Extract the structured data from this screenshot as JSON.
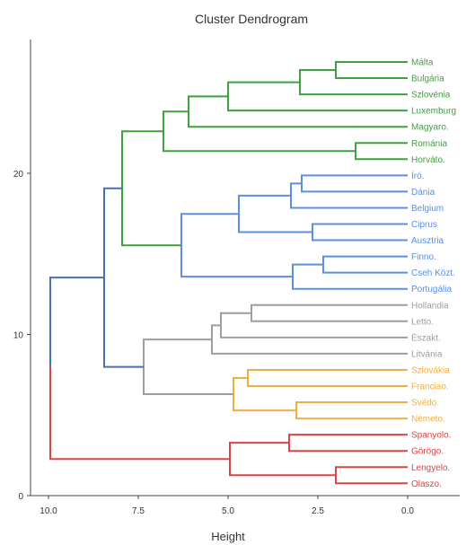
{
  "chart_data": {
    "type": "dendrogram",
    "title": "Cluster Dendrogram",
    "xlabel": "Height",
    "ylabel": "",
    "orientation": "horizontal",
    "x_reversed": true,
    "xlim": [
      10.4,
      -1.5
    ],
    "x_ticks": [
      10.0,
      7.5,
      5.0,
      2.5,
      0.0
    ],
    "x_tick_labels": [
      "10.0",
      "7.5",
      "5.0",
      "2.5",
      "0.0"
    ],
    "ylim": [
      0,
      28
    ],
    "y_ticks": [
      0,
      10,
      20
    ],
    "y_tick_labels": [
      "0",
      "10",
      "20"
    ],
    "grid": false,
    "legend": "none",
    "leaves": [
      {
        "label": "Málta",
        "color": "#3fa13f"
      },
      {
        "label": "Bulgária",
        "color": "#3fa13f"
      },
      {
        "label": "Szlovénia",
        "color": "#3fa13f"
      },
      {
        "label": "Luxemburg",
        "color": "#3fa13f"
      },
      {
        "label": "Magyaro.",
        "color": "#3fa13f"
      },
      {
        "label": "Románia",
        "color": "#3fa13f"
      },
      {
        "label": "Horváto.",
        "color": "#3fa13f"
      },
      {
        "label": "Író.",
        "color": "#5b8fe3"
      },
      {
        "label": "Dánia",
        "color": "#5b8fe3"
      },
      {
        "label": "Belgium",
        "color": "#5b8fe3"
      },
      {
        "label": "Ciprus",
        "color": "#5b8fe3"
      },
      {
        "label": "Ausztria",
        "color": "#5b8fe3"
      },
      {
        "label": "Finno.",
        "color": "#5b8fe3"
      },
      {
        "label": "Cseh Közt.",
        "color": "#5b8fe3"
      },
      {
        "label": "Portugália",
        "color": "#5b8fe3"
      },
      {
        "label": "Hollandia",
        "color": "#9e9e9e"
      },
      {
        "label": "Letto.",
        "color": "#9e9e9e"
      },
      {
        "label": "Északt.",
        "color": "#9e9e9e"
      },
      {
        "label": "Litvánia",
        "color": "#9e9e9e"
      },
      {
        "label": "Szlovákia",
        "color": "#f0b040"
      },
      {
        "label": "Franciao.",
        "color": "#f0b040"
      },
      {
        "label": "Svédo.",
        "color": "#f0b040"
      },
      {
        "label": "Németo.",
        "color": "#f0b040"
      },
      {
        "label": "Spanyolo.",
        "color": "#dd4444"
      },
      {
        "label": "Görögo.",
        "color": "#dd4444"
      },
      {
        "label": "Lengyelo.",
        "color": "#dd4444"
      },
      {
        "label": "Olaszo.",
        "color": "#dd4444"
      }
    ],
    "merges": [
      {
        "a": "L0",
        "b": "L1",
        "height": 2.0,
        "color": "#3fa13f"
      },
      {
        "a": "M0",
        "b": "L2",
        "height": 3.0,
        "color": "#3fa13f"
      },
      {
        "a": "M1",
        "b": "L3",
        "height": 5.0,
        "color": "#3fa13f"
      },
      {
        "a": "M2",
        "b": "L4",
        "height": 6.1,
        "color": "#3fa13f"
      },
      {
        "a": "L5",
        "b": "L6",
        "height": 1.45,
        "color": "#3fa13f"
      },
      {
        "a": "M3",
        "b": "M4",
        "height": 6.8,
        "color": "#3fa13f"
      },
      {
        "a": "L7",
        "b": "L8",
        "height": 2.95,
        "color": "#5b8fe3"
      },
      {
        "a": "M6",
        "b": "L9",
        "height": 3.25,
        "color": "#5b8fe3"
      },
      {
        "a": "L10",
        "b": "L11",
        "height": 2.65,
        "color": "#5b8fe3"
      },
      {
        "a": "M7",
        "b": "M8",
        "height": 4.7,
        "color": "#5b8fe3"
      },
      {
        "a": "L12",
        "b": "L13",
        "height": 2.35,
        "color": "#5b8fe3"
      },
      {
        "a": "M10",
        "b": "L14",
        "height": 3.2,
        "color": "#5b8fe3"
      },
      {
        "a": "M9",
        "b": "M11",
        "height": 6.3,
        "color": "#5b8fe3"
      },
      {
        "a": "M5",
        "b": "M12",
        "height": 7.95,
        "color": "#3fa13f"
      },
      {
        "a": "L15",
        "b": "L16",
        "height": 4.35,
        "color": "#9e9e9e"
      },
      {
        "a": "M14",
        "b": "L17",
        "height": 5.2,
        "color": "#9e9e9e"
      },
      {
        "a": "M15",
        "b": "L18",
        "height": 5.45,
        "color": "#9e9e9e"
      },
      {
        "a": "L19",
        "b": "L20",
        "height": 4.45,
        "color": "#f0b040"
      },
      {
        "a": "L21",
        "b": "L22",
        "height": 3.1,
        "color": "#f0b040"
      },
      {
        "a": "M17",
        "b": "M18",
        "height": 4.85,
        "color": "#f0b040"
      },
      {
        "a": "M16",
        "b": "M19",
        "height": 7.35,
        "color": "#9e9e9e"
      },
      {
        "a": "M13",
        "b": "M20",
        "height": 8.45,
        "color": "#4a6fb0"
      },
      {
        "a": "L23",
        "b": "L24",
        "height": 3.3,
        "color": "#dd4444"
      },
      {
        "a": "L25",
        "b": "L26",
        "height": 2.0,
        "color": "#dd4444"
      },
      {
        "a": "M22",
        "b": "M23",
        "height": 4.95,
        "color": "#dd4444"
      },
      {
        "a": "M21",
        "b": "M24",
        "height": 9.95,
        "color": "#4a6fb0"
      }
    ],
    "root_split": {
      "upper_color": "#4a6fb0",
      "lower_color": "#dd4444",
      "split_y": 8.0
    }
  }
}
